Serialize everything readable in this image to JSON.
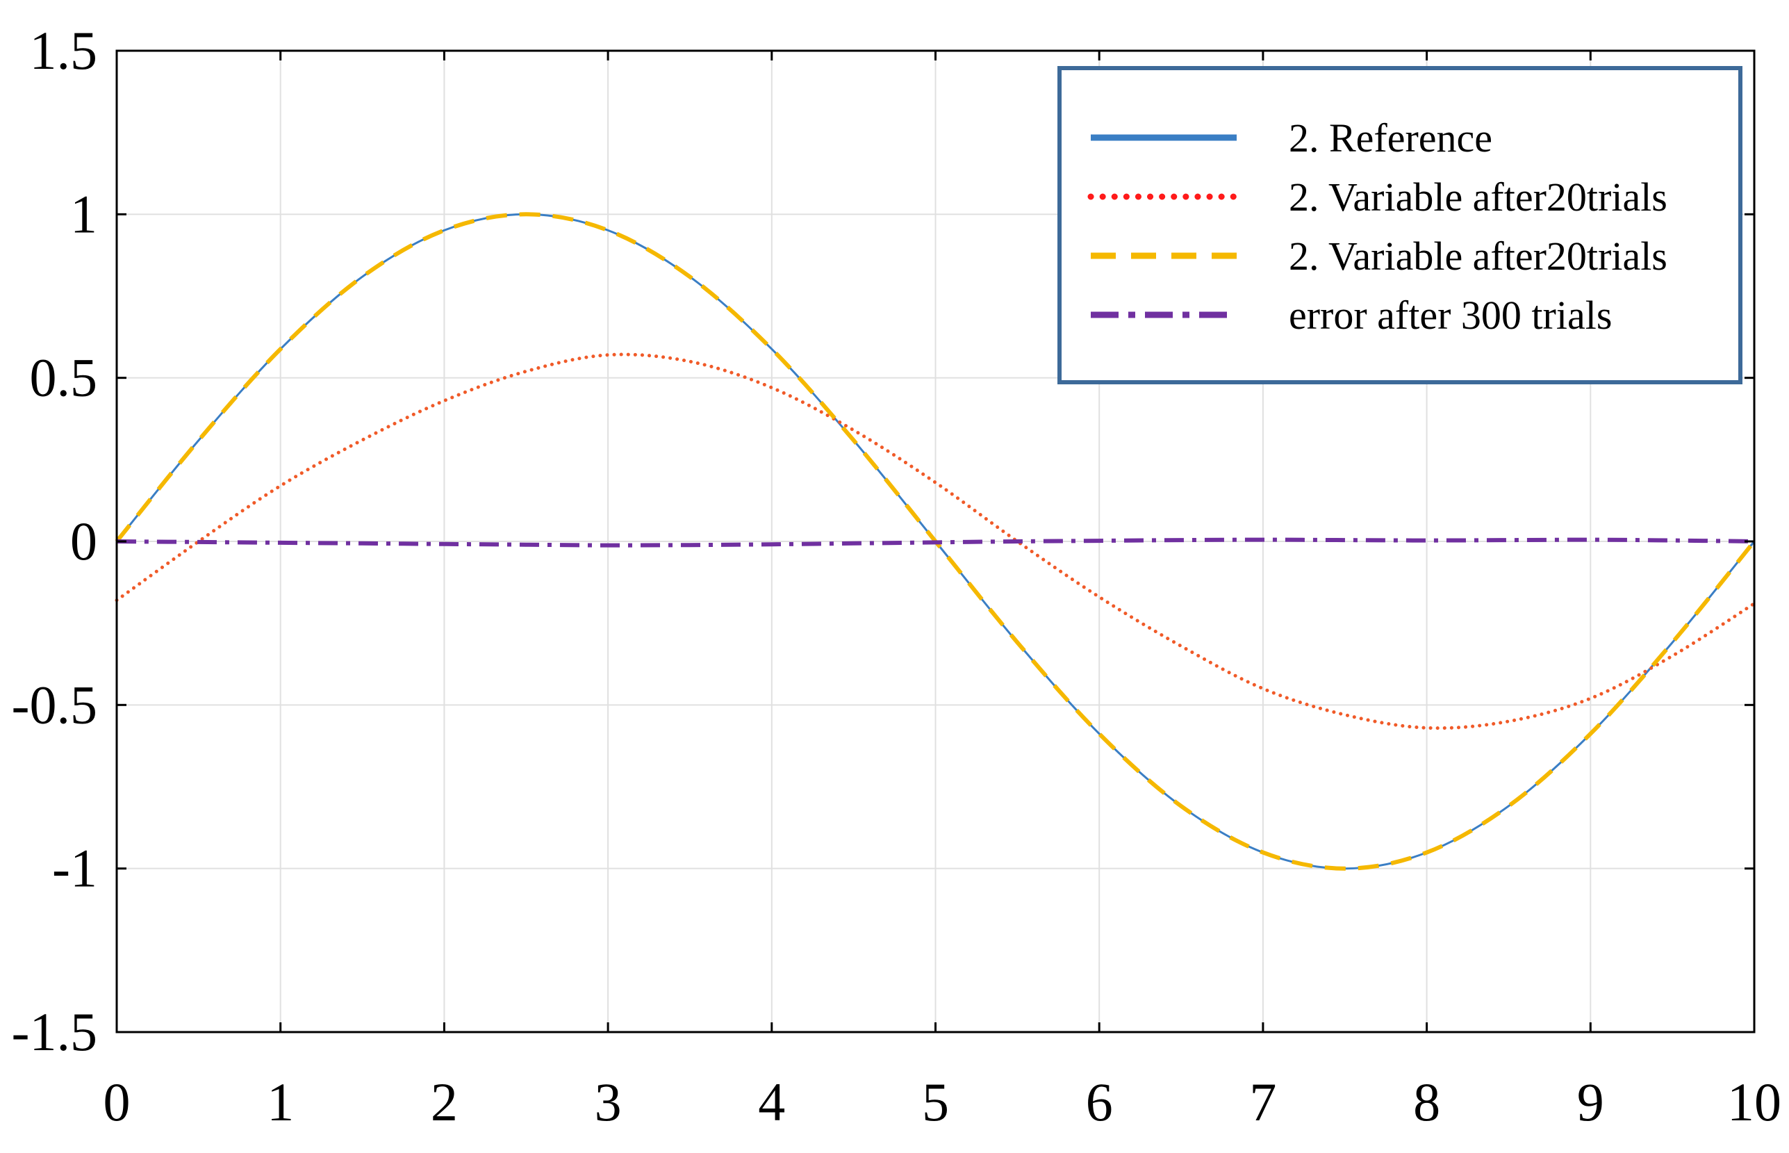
{
  "chart_data": {
    "type": "line",
    "title": "",
    "xlabel": "",
    "ylabel": "",
    "xlim": [
      0,
      10
    ],
    "ylim": [
      -1.5,
      1.5
    ],
    "grid": true,
    "legend_position": "top-right",
    "xticks": [
      0,
      1,
      2,
      3,
      4,
      5,
      6,
      7,
      8,
      9,
      10
    ],
    "xtick_labels": [
      "0",
      "1",
      "2",
      "3",
      "4",
      "5",
      "6",
      "7",
      "8",
      "9",
      "10"
    ],
    "yticks": [
      1.5,
      1,
      0.5,
      0,
      -0.5,
      -1,
      -1.5
    ],
    "ytick_labels": [
      "1.5",
      "1",
      "0.5",
      "0",
      "-0.5",
      "-1",
      "-1.5"
    ],
    "x": [
      0,
      0.5,
      1,
      1.5,
      2,
      2.5,
      3,
      3.5,
      4,
      4.5,
      5,
      5.5,
      6,
      6.5,
      7,
      7.5,
      8,
      8.5,
      9,
      9.5,
      10
    ],
    "series": [
      {
        "name": "2. Reference",
        "color": "#3a7ec4",
        "style": "solid",
        "values": [
          0,
          0.309,
          0.588,
          0.809,
          0.951,
          1.0,
          0.951,
          0.809,
          0.588,
          0.309,
          0,
          -0.309,
          -0.588,
          -0.809,
          -0.951,
          -1.0,
          -0.951,
          -0.809,
          -0.588,
          -0.309,
          0
        ]
      },
      {
        "name": "2. Variable after20trials",
        "color": "#f05a28",
        "legend_color": "#ff1a1a",
        "style": "dotted",
        "values": [
          -0.18,
          0.0,
          0.17,
          0.31,
          0.43,
          0.52,
          0.57,
          0.55,
          0.47,
          0.34,
          0.18,
          0.0,
          -0.17,
          -0.32,
          -0.45,
          -0.53,
          -0.57,
          -0.55,
          -0.48,
          -0.35,
          -0.19
        ]
      },
      {
        "name": "2. Variable after20trials",
        "color": "#f5b800",
        "style": "dashed",
        "values": [
          0,
          0.309,
          0.588,
          0.809,
          0.951,
          1.0,
          0.951,
          0.809,
          0.588,
          0.309,
          0,
          -0.309,
          -0.588,
          -0.809,
          -0.951,
          -1.0,
          -0.951,
          -0.809,
          -0.588,
          -0.309,
          0
        ]
      },
      {
        "name": "error after 300 trials",
        "color": "#7030a0",
        "style": "dashdot",
        "values": [
          0,
          -0.002,
          -0.004,
          -0.006,
          -0.008,
          -0.01,
          -0.012,
          -0.011,
          -0.009,
          -0.006,
          -0.003,
          0.0,
          0.002,
          0.004,
          0.005,
          0.004,
          0.003,
          0.004,
          0.005,
          0.003,
          0.0
        ]
      }
    ]
  }
}
